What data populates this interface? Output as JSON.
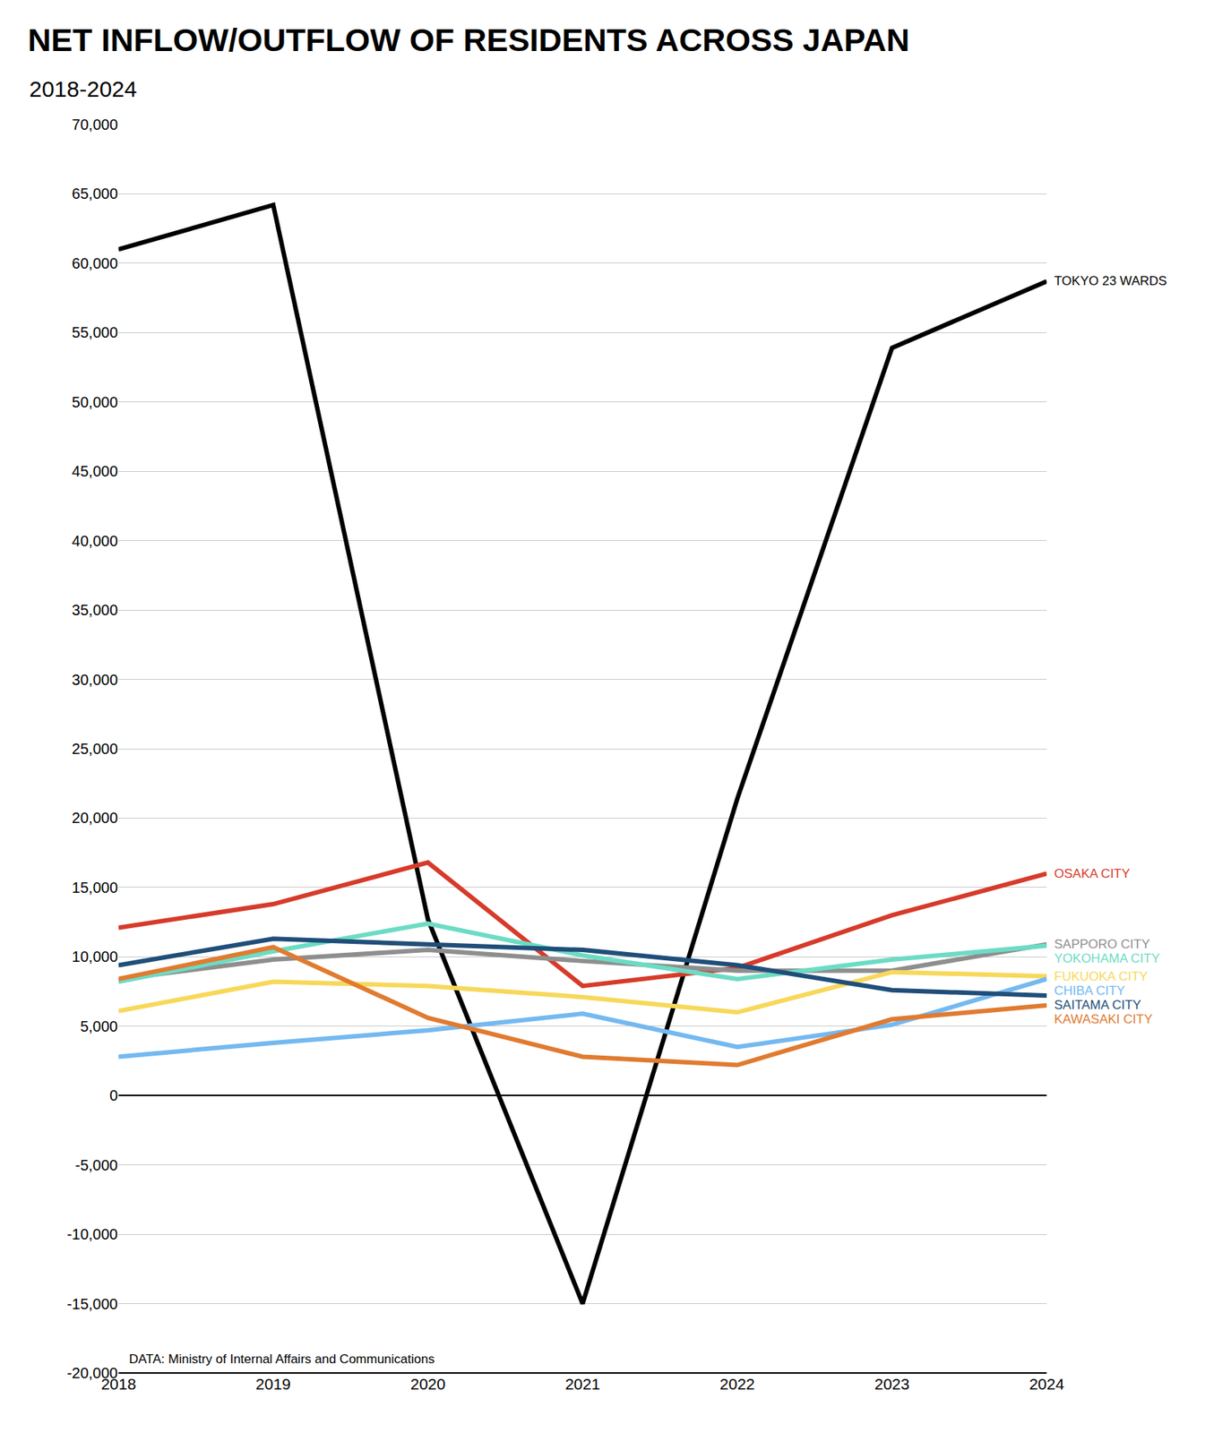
{
  "chart_data": {
    "type": "line",
    "title": "NET INFLOW/OUTFLOW OF RESIDENTS ACROSS JAPAN",
    "subtitle": "2018-2024",
    "annotations": [
      "DATA: Ministry of Internal Affairs and Communications"
    ],
    "x": [
      2018,
      2019,
      2020,
      2021,
      2022,
      2023,
      2024
    ],
    "xlim": [
      2018,
      2024
    ],
    "xticks": [
      2018,
      2019,
      2020,
      2021,
      2022,
      2023,
      2024
    ],
    "ylim": [
      -20000,
      70000
    ],
    "yticks": [
      {
        "value": -20000,
        "label": "-20,000"
      },
      {
        "value": -15000,
        "label": "-15,000"
      },
      {
        "value": -10000,
        "label": "-10,000"
      },
      {
        "value": -5000,
        "label": "-5,000"
      },
      0,
      {
        "value": 5000,
        "label": "5,000"
      },
      {
        "value": 10000,
        "label": "10,000"
      },
      {
        "value": 15000,
        "label": "15,000"
      },
      {
        "value": 20000,
        "label": "20,000"
      },
      {
        "value": 25000,
        "label": "25,000"
      },
      {
        "value": 30000,
        "label": "30,000"
      },
      {
        "value": 35000,
        "label": "35,000"
      },
      {
        "value": 40000,
        "label": "40,000"
      },
      {
        "value": 45000,
        "label": "45,000"
      },
      {
        "value": 50000,
        "label": "50,000"
      },
      {
        "value": 55000,
        "label": "55,000"
      },
      {
        "value": 60000,
        "label": "60,000"
      },
      {
        "value": 65000,
        "label": "65,000"
      },
      {
        "value": 70000,
        "label": "70,000"
      }
    ],
    "grid": true,
    "series": [
      {
        "name": "TOKYO 23 WARDS",
        "color": "#000000",
        "values": [
          61000,
          64200,
          12700,
          -15000,
          21400,
          53900,
          58700
        ]
      },
      {
        "name": "OSAKA CITY",
        "color": "#d63b2a",
        "values": [
          12100,
          13800,
          16800,
          7900,
          9200,
          13000,
          16000
        ]
      },
      {
        "name": "SAPPORO CITY",
        "color": "#8e8e8e",
        "values": [
          8400,
          9800,
          10500,
          9700,
          9000,
          9000,
          10900
        ]
      },
      {
        "name": "YOKOHAMA CITY",
        "color": "#6cdcc4",
        "values": [
          8200,
          10400,
          12400,
          10100,
          8400,
          9800,
          10800
        ]
      },
      {
        "name": "FUKUOKA CITY",
        "color": "#f7d85a",
        "values": [
          6100,
          8200,
          7900,
          7100,
          6000,
          8900,
          8600
        ]
      },
      {
        "name": "CHIBA CITY",
        "color": "#74b9f0",
        "values": [
          2800,
          3800,
          4700,
          5900,
          3500,
          5100,
          8400
        ]
      },
      {
        "name": "SAITAMA CITY",
        "color": "#1f4e79",
        "values": [
          9400,
          11300,
          10900,
          10500,
          9400,
          7600,
          7200
        ]
      },
      {
        "name": "KAWASAKI CITY",
        "color": "#e07b30",
        "values": [
          8400,
          10700,
          5600,
          2800,
          2200,
          5500,
          6500
        ]
      }
    ]
  }
}
